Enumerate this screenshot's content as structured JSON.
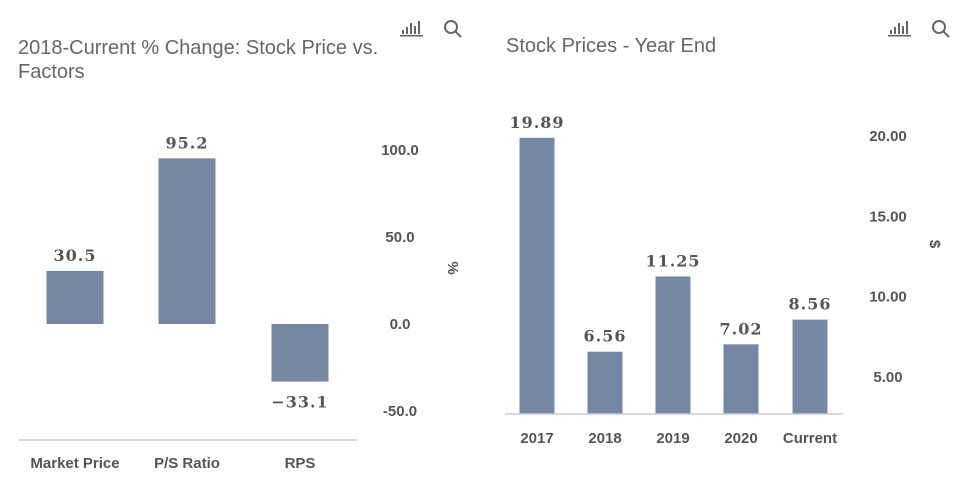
{
  "colors": {
    "bar": "#7687a4",
    "axis": "#cccccc",
    "text": "#555555"
  },
  "icons": [
    "bar-chart-icon",
    "search-icon"
  ],
  "chart_data": [
    {
      "type": "bar",
      "title_lines": [
        "2018-Current % Change: Stock Price vs.",
        "Factors"
      ],
      "categories": [
        "Market Price",
        "P/S Ratio",
        "RPS"
      ],
      "values": [
        30.5,
        95.2,
        -33.1
      ],
      "data_labels": [
        "30.5",
        "95.2",
        "−33.1"
      ],
      "ylabel": "%",
      "ylim": [
        -55,
        105
      ],
      "yticks": [
        100,
        50,
        0,
        -50
      ],
      "ytick_labels": [
        "100.0",
        "50.0",
        "0.0",
        "-50.0"
      ],
      "axis_side": "right",
      "grid": false
    },
    {
      "type": "bar",
      "title_lines": [
        "Stock Prices - Year End"
      ],
      "categories": [
        "2017",
        "2018",
        "2019",
        "2020",
        "Current"
      ],
      "values": [
        19.89,
        6.56,
        11.25,
        7.02,
        8.56
      ],
      "data_labels": [
        "19.89",
        "6.56",
        "11.25",
        "7.02",
        "8.56"
      ],
      "ylabel": "$",
      "ylim": [
        2.7,
        21
      ],
      "yticks": [
        20,
        15,
        10,
        5
      ],
      "ytick_labels": [
        "20.00",
        "15.00",
        "10.00",
        "5.00"
      ],
      "axis_side": "right",
      "grid": false
    }
  ]
}
